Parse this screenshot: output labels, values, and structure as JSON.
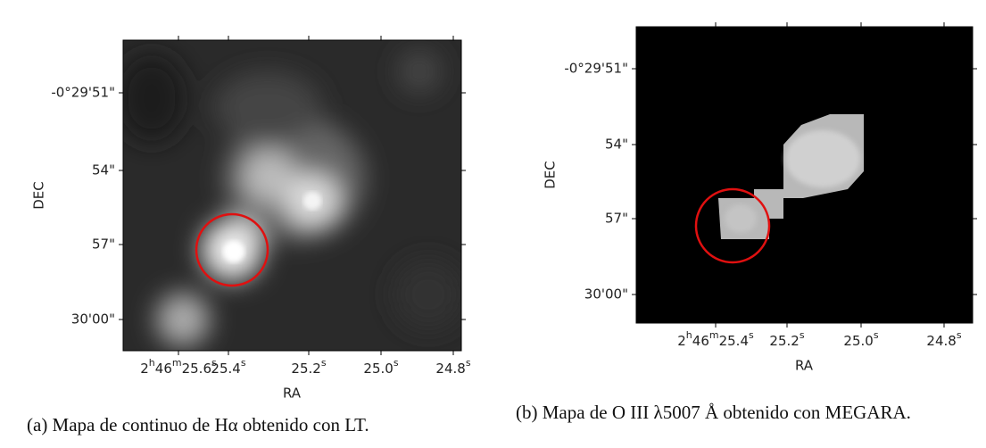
{
  "panels": [
    {
      "y_ticks": [
        "-0°29'51\"",
        "54\"",
        "57\"",
        "30'00\""
      ],
      "x_ticks": [
        [
          "2",
          "h",
          "46",
          "m",
          "25.6",
          "s"
        ],
        [
          "25.4",
          "s"
        ],
        [
          "25.2",
          "s"
        ],
        [
          "25.0",
          "s"
        ],
        [
          "24.8",
          "s"
        ]
      ],
      "y_label": "DEC",
      "x_label": "RA",
      "caption": "(a) Mapa de continuo de Hα obtenido con LT."
    },
    {
      "y_ticks": [
        "-0°29'51\"",
        "54\"",
        "57\"",
        "30'00\""
      ],
      "x_ticks": [
        [
          "2",
          "h",
          "46",
          "m",
          "25.4",
          "s"
        ],
        [
          "25.2",
          "s"
        ],
        [
          "25.0",
          "s"
        ],
        [
          "24.8",
          "s"
        ]
      ],
      "y_label": "DEC",
      "x_label": "RA",
      "caption": "(b) Mapa de O III λ5007 Å obtenido con MEGARA."
    }
  ]
}
